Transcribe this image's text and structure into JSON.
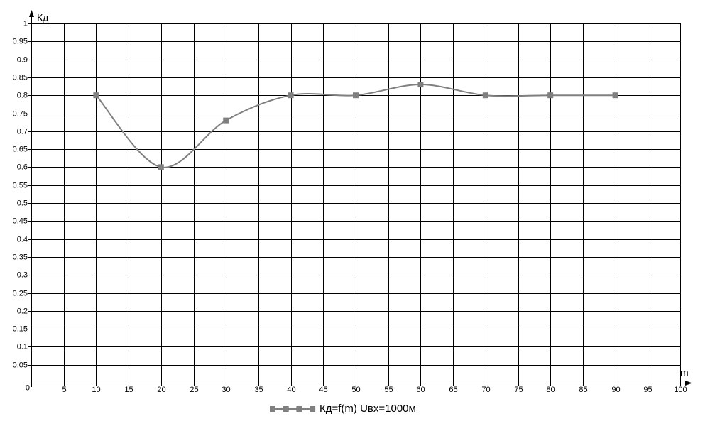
{
  "chart_data": {
    "type": "line",
    "x_label": "m",
    "y_label": "Кд",
    "x": [
      10,
      20,
      30,
      40,
      50,
      60,
      70,
      80,
      90
    ],
    "series": [
      {
        "name": "Кд=f(m) Uвх=1000м",
        "color": "#808080",
        "values": [
          0.8,
          0.6,
          0.73,
          0.8,
          0.8,
          0.83,
          0.8,
          0.8,
          0.8
        ]
      }
    ],
    "xlim": [
      0,
      100
    ],
    "ylim": [
      0,
      1
    ],
    "xticks": [
      5,
      10,
      15,
      20,
      25,
      30,
      35,
      40,
      45,
      50,
      55,
      60,
      65,
      70,
      75,
      80,
      85,
      90,
      95,
      100
    ],
    "yticks": [
      0,
      0.05,
      0.1,
      0.15,
      0.2,
      0.25,
      0.3,
      0.35,
      0.4,
      0.45,
      0.5,
      0.55,
      0.6,
      0.65,
      0.7,
      0.75,
      0.8,
      0.85,
      0.9,
      0.95,
      1
    ],
    "grid": true,
    "smooth": true,
    "legend": "bottom"
  }
}
